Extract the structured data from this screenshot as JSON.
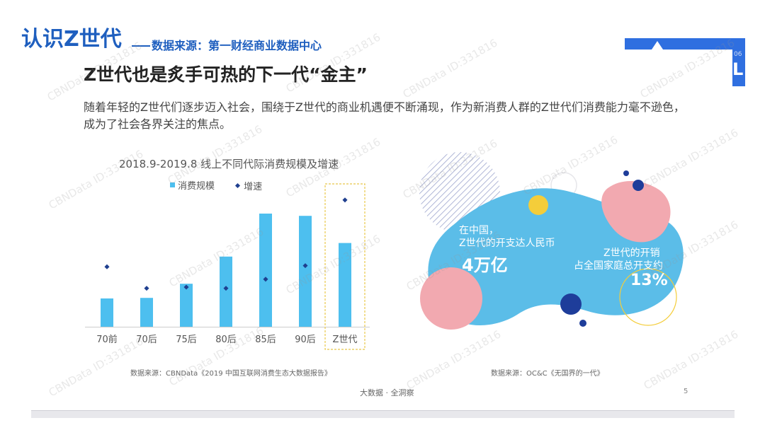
{
  "header": {
    "section_title": "认识Z世代",
    "source": "数据来源：第一财经商业数据中心",
    "corner_letter": "L",
    "corner_number": "06"
  },
  "slide": {
    "title": "Z世代也是炙手可热的下一代“金主”",
    "intro": "随着年轻的Z世代们逐步迈入社会，围绕于Z世代的商业机遇便不断涌现，作为新消费人群的Z世代们消费能力毫不逊色，成为了社会各界关注的焦点。"
  },
  "chart_data": {
    "type": "bar",
    "title": "2018.9-2019.8 线上不同代际消费规模及增速",
    "categories": [
      "70前",
      "70后",
      "75后",
      "80后",
      "85后",
      "90后",
      "Z世代"
    ],
    "series": [
      {
        "name": "消费规模",
        "kind": "bar",
        "values": [
          25,
          25.5,
          38,
          62,
          100,
          98,
          74
        ]
      },
      {
        "name": "增速",
        "kind": "point",
        "values": [
          53,
          34,
          35,
          34,
          42,
          54,
          112
        ]
      }
    ],
    "ylim": [
      0,
      120
    ],
    "grid": false,
    "legend_position": "top",
    "highlight_category": "Z世代",
    "colors": {
      "bar": "#4dbfef",
      "point": "#1f3f8f",
      "highlight": "#e8c84a"
    },
    "source": "数据来源：CBNData《2019 中国互联网消费生态大数据报告》"
  },
  "infographic": {
    "stat1_lines": [
      "在中国，",
      "Z世代的开支达人民币"
    ],
    "stat1_value": "4万亿",
    "stat2_lines": [
      "Z世代的开销",
      "占全国家庭总开支约"
    ],
    "stat2_value": "13%",
    "source": "数据来源：OC&C《无国界的一代》",
    "colors": {
      "blob": "#5bbde8",
      "pink": "#f2a9b0",
      "yellow": "#f4cd3a",
      "navy": "#1e3d9a",
      "stripe": "#9aa3cc"
    }
  },
  "footer": {
    "brand": "大数据 · 全洞察",
    "page": "5"
  },
  "watermark": "CBNData ID:331816"
}
